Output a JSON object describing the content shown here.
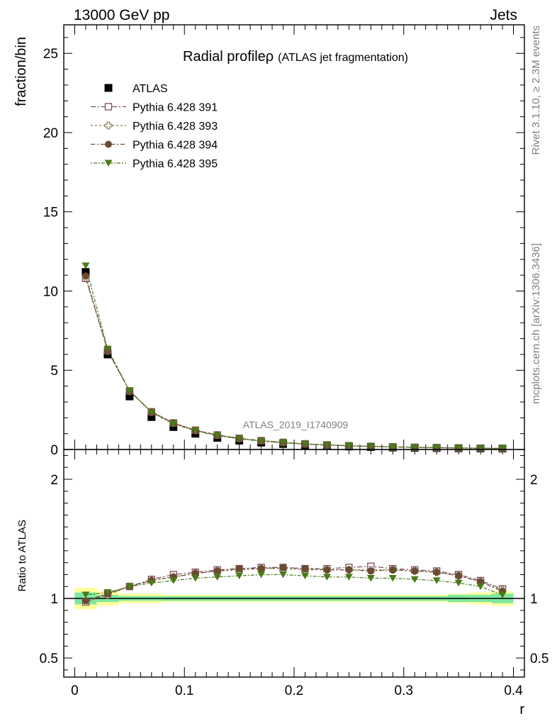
{
  "header": {
    "left": "13000 GeV pp",
    "right": "Jets"
  },
  "title": {
    "main": "Radial profile",
    "symbol": "ρ",
    "sub": "(ATLAS jet fragmentation)"
  },
  "side": {
    "rivet": "Rivet 3.1.10, ≥ 2.3M events",
    "mcplots": "mcplots.cern.ch [arXiv:1306.3436]"
  },
  "watermark": "ATLAS_2019_I1740909",
  "colors": {
    "atlas": "#000000",
    "p391": "#7b4a5c",
    "p393": "#8a7a52",
    "p394": "#6b4a32",
    "p395": "#4a7a1a",
    "band_inner": "#7fe8a0",
    "band_outer": "#ffff99"
  },
  "chart_data": [
    {
      "type": "scatter",
      "ylabel": "fraction/bin",
      "xlim": [
        -0.01,
        0.41
      ],
      "ylim": [
        0,
        26.8
      ],
      "yticks": [
        "0",
        "5",
        "10",
        "15",
        "20",
        "25"
      ],
      "x": [
        0.01,
        0.03,
        0.05,
        0.07,
        0.09,
        0.11,
        0.13,
        0.15,
        0.17,
        0.19,
        0.21,
        0.23,
        0.25,
        0.27,
        0.29,
        0.31,
        0.33,
        0.35,
        0.37,
        0.39
      ],
      "series": [
        {
          "name": "ATLAS",
          "marker": "square-filled",
          "values": [
            11.2,
            6.0,
            3.35,
            2.05,
            1.42,
            1.0,
            0.74,
            0.56,
            0.44,
            0.35,
            0.28,
            0.23,
            0.19,
            0.16,
            0.13,
            0.11,
            0.095,
            0.08,
            0.068,
            0.058
          ]
        },
        {
          "name": "Pythia 6.428 391",
          "marker": "square-open",
          "values": [
            10.8,
            6.25,
            3.7,
            2.38,
            1.68,
            1.22,
            0.92,
            0.71,
            0.56,
            0.45,
            0.36,
            0.29,
            0.24,
            0.2,
            0.17,
            0.14,
            0.12,
            0.1,
            0.082,
            0.066
          ]
        },
        {
          "name": "Pythia 6.428 393",
          "marker": "cross-open",
          "values": [
            10.85,
            6.22,
            3.68,
            2.36,
            1.67,
            1.21,
            0.91,
            0.7,
            0.55,
            0.44,
            0.35,
            0.285,
            0.235,
            0.195,
            0.165,
            0.138,
            0.118,
            0.099,
            0.081,
            0.065
          ]
        },
        {
          "name": "Pythia 6.428 394",
          "marker": "circle-filled",
          "values": [
            10.95,
            6.24,
            3.69,
            2.37,
            1.67,
            1.21,
            0.91,
            0.7,
            0.55,
            0.44,
            0.35,
            0.286,
            0.236,
            0.196,
            0.166,
            0.139,
            0.118,
            0.099,
            0.081,
            0.065
          ]
        },
        {
          "name": "Pythia 6.428 395",
          "marker": "triangle-down-filled",
          "values": [
            11.6,
            6.35,
            3.7,
            2.33,
            1.62,
            1.17,
            0.87,
            0.67,
            0.53,
            0.42,
            0.34,
            0.275,
            0.228,
            0.19,
            0.16,
            0.133,
            0.113,
            0.095,
            0.078,
            0.062
          ]
        }
      ]
    },
    {
      "type": "scatter",
      "xlabel": "r",
      "ylabel": "Ratio to ATLAS",
      "xlim": [
        -0.01,
        0.41
      ],
      "ylim": [
        0.34,
        2.25
      ],
      "yticks": [
        "0.5",
        "1",
        "2"
      ],
      "xticks": [
        "0",
        "0.1",
        "0.2",
        "0.3",
        "0.4"
      ],
      "x": [
        0.01,
        0.03,
        0.05,
        0.07,
        0.09,
        0.11,
        0.13,
        0.15,
        0.17,
        0.19,
        0.21,
        0.23,
        0.25,
        0.27,
        0.29,
        0.31,
        0.33,
        0.35,
        0.37,
        0.39
      ],
      "band_inner_halfwidth": [
        0.05,
        0.03,
        0.02,
        0.02,
        0.02,
        0.02,
        0.02,
        0.02,
        0.02,
        0.02,
        0.02,
        0.02,
        0.02,
        0.02,
        0.02,
        0.02,
        0.02,
        0.03,
        0.03,
        0.04
      ],
      "band_outer_halfwidth": [
        0.09,
        0.06,
        0.04,
        0.04,
        0.03,
        0.03,
        0.03,
        0.03,
        0.03,
        0.03,
        0.03,
        0.03,
        0.03,
        0.03,
        0.03,
        0.03,
        0.03,
        0.04,
        0.05,
        0.06
      ],
      "series": [
        {
          "name": "Pythia 6.428 391",
          "marker": "square-open",
          "values": [
            0.97,
            1.04,
            1.1,
            1.16,
            1.2,
            1.22,
            1.24,
            1.25,
            1.26,
            1.26,
            1.25,
            1.25,
            1.26,
            1.27,
            1.25,
            1.24,
            1.23,
            1.2,
            1.15,
            1.08
          ]
        },
        {
          "name": "Pythia 6.428 393",
          "marker": "cross-open",
          "values": [
            0.97,
            1.03,
            1.1,
            1.15,
            1.18,
            1.21,
            1.23,
            1.24,
            1.25,
            1.25,
            1.24,
            1.24,
            1.24,
            1.24,
            1.24,
            1.23,
            1.22,
            1.19,
            1.14,
            1.07
          ]
        },
        {
          "name": "Pythia 6.428 394",
          "marker": "circle-filled",
          "values": [
            0.98,
            1.04,
            1.1,
            1.15,
            1.18,
            1.21,
            1.23,
            1.25,
            1.25,
            1.26,
            1.25,
            1.24,
            1.24,
            1.23,
            1.24,
            1.23,
            1.22,
            1.19,
            1.14,
            1.06
          ]
        },
        {
          "name": "Pythia 6.428 395",
          "marker": "triangle-down-filled",
          "values": [
            1.03,
            1.05,
            1.1,
            1.13,
            1.15,
            1.17,
            1.18,
            1.19,
            1.2,
            1.2,
            1.19,
            1.18,
            1.18,
            1.17,
            1.17,
            1.16,
            1.15,
            1.13,
            1.1,
            1.03
          ]
        }
      ]
    }
  ]
}
